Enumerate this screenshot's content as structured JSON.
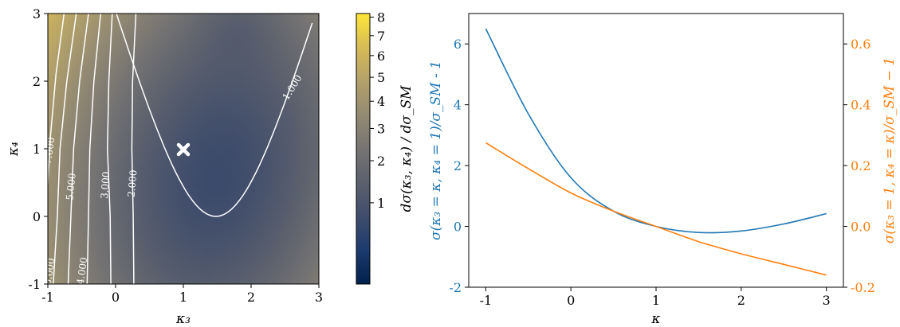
{
  "chart_data": [
    {
      "type": "heatmap",
      "xlabel": "κ₃",
      "ylabel": "κ₄",
      "xlim": [
        -1,
        3
      ],
      "ylim": [
        -1,
        3
      ],
      "x_ticks": [
        "-1",
        "0",
        "1",
        "2",
        "3"
      ],
      "y_ticks": [
        "-1",
        "0",
        "1",
        "2",
        "3"
      ],
      "grid": false,
      "colormap": "cividis",
      "marker": {
        "symbol": "cross",
        "x": 1,
        "y": 1,
        "color": "#ffffff"
      },
      "contour_levels": [
        "1.000",
        "2.000",
        "3.000",
        "4.000",
        "5.000",
        "6.000",
        "7.000"
      ],
      "colorbar": {
        "label": "dσ(κ₃, κ₄) / dσ_SM",
        "ticks": [
          "1",
          "2",
          "3",
          "4",
          "5",
          "6",
          "7",
          "8"
        ],
        "range": [
          0.0,
          8.2
        ]
      }
    },
    {
      "type": "line",
      "xlabel": "κ",
      "xlim": [
        -1.2,
        3.2
      ],
      "x_ticks": [
        "-1",
        "0",
        "1",
        "2",
        "3"
      ],
      "grid": false,
      "series": [
        {
          "axis": "left",
          "color": "#1f77b4",
          "ylabel": "σ(κ₃ = κ, κ₄ = 1)/σ_SM - 1",
          "ylim": [
            -2,
            7
          ],
          "y_ticks": [
            "-2",
            "0",
            "2",
            "4",
            "6"
          ],
          "x": [
            -1.0,
            -0.5,
            0.0,
            0.5,
            1.0,
            1.5,
            2.0,
            2.5,
            3.0
          ],
          "y": [
            6.5,
            3.7,
            1.6,
            0.5,
            0.0,
            -0.2,
            -0.15,
            0.08,
            0.42
          ]
        },
        {
          "axis": "right",
          "color": "#ff7f0e",
          "ylabel": "σ(κ₃ = 1, κ₄ = κ)/σ_SM − 1",
          "ylim": [
            -0.2,
            0.7
          ],
          "y_ticks": [
            "-0.2",
            "0.0",
            "0.2",
            "0.4",
            "0.6"
          ],
          "x": [
            -1.0,
            -0.5,
            0.0,
            0.5,
            1.0,
            1.5,
            2.0,
            2.5,
            3.0
          ],
          "y": [
            0.275,
            0.19,
            0.11,
            0.05,
            0.0,
            -0.05,
            -0.09,
            -0.125,
            -0.16
          ]
        }
      ]
    }
  ]
}
